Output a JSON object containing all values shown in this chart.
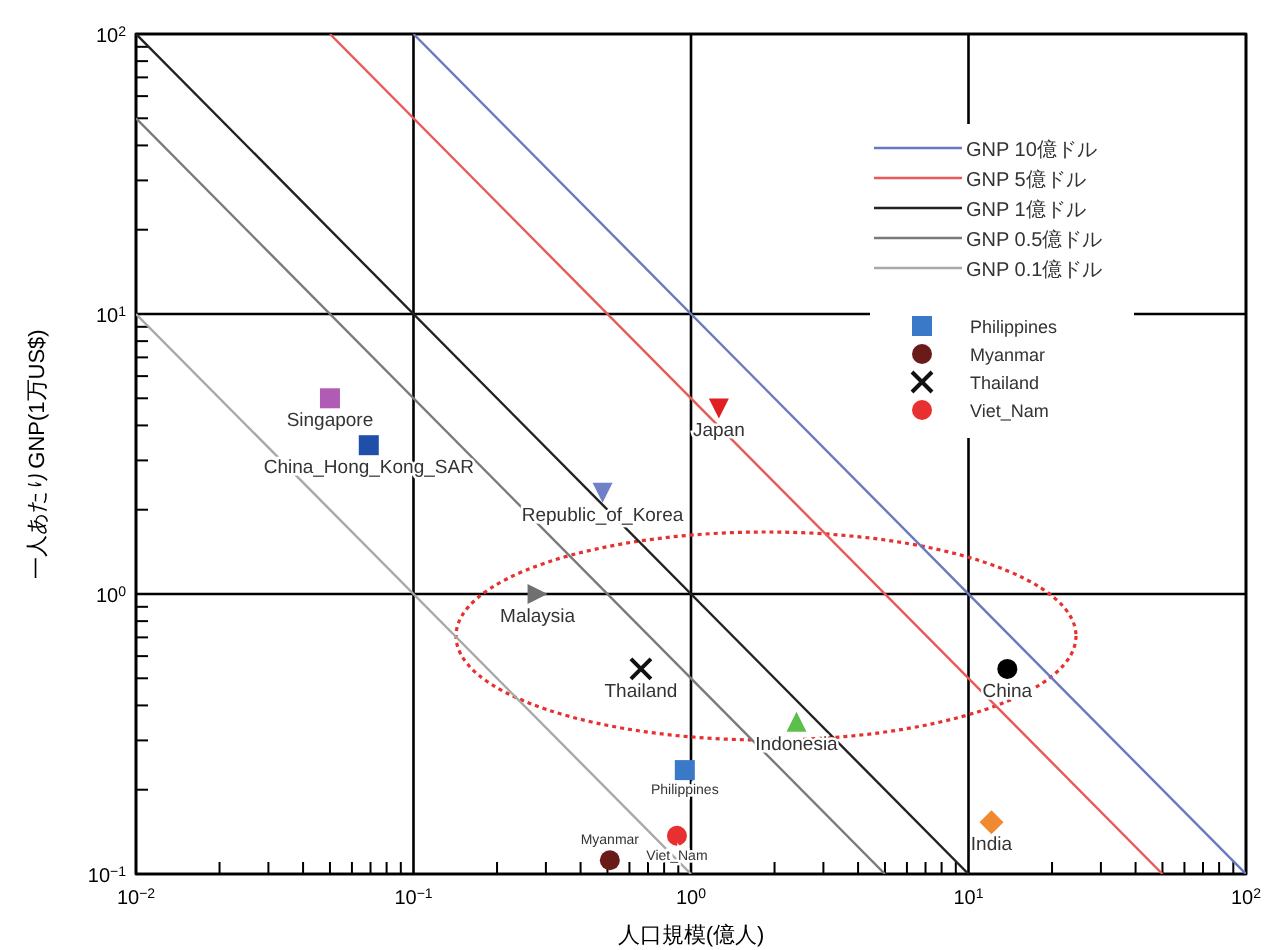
{
  "chart_data": {
    "type": "scatter",
    "xlabel": "人口規模(億人)",
    "ylabel": "一人あたりGNP(1万US$)",
    "log": "xy",
    "grid": true,
    "legend": "top right",
    "xlim": [
      0.01,
      100
    ],
    "ylim": [
      0.1,
      100
    ],
    "xticks": [
      {
        "value": 0.01,
        "label": "10$^{−2}$"
      },
      {
        "value": 0.1,
        "label": "10$^{−1}$"
      },
      {
        "value": 1,
        "label": "10$^{0}$"
      },
      {
        "value": 10,
        "label": "10$^{1}$"
      },
      {
        "value": 100,
        "label": "10$^{2}$"
      }
    ],
    "yticks": [
      {
        "value": 0.1,
        "label": "10$^{−1}$"
      },
      {
        "value": 1,
        "label": "10$^{0}$"
      },
      {
        "value": 10,
        "label": "10$^{1}$"
      },
      {
        "value": 100,
        "label": "10$^{2}$"
      }
    ],
    "series": [
      {
        "type": "line",
        "name": "GNP 10億ドル",
        "color": "#6a78c0",
        "x": [
          0.1,
          100
        ],
        "values": [
          100,
          0.1
        ]
      },
      {
        "type": "line",
        "name": "GNP 5億ドル",
        "color": "#e85a5a",
        "x": [
          0.05,
          50
        ],
        "values": [
          100,
          0.1
        ]
      },
      {
        "type": "line",
        "name": "GNP 1億ドル",
        "color": "#222222",
        "x": [
          0.01,
          10
        ],
        "values": [
          100,
          0.1
        ]
      },
      {
        "type": "line",
        "name": "GNP 0.5億ドル",
        "color": "#7a7a7a",
        "x": [
          0.01,
          5
        ],
        "values": [
          50,
          0.1
        ]
      },
      {
        "type": "line",
        "name": "GNP 0.1億ドル",
        "color": "#a8a8a8",
        "x": [
          0.01,
          1
        ],
        "values": [
          10,
          0.1
        ]
      },
      {
        "name": "Philippines",
        "color": "#3a78c8",
        "marker": "square",
        "x": [
          0.95
        ],
        "values": [
          0.235
        ]
      },
      {
        "name": "Myanmar",
        "color": "#6b1a1a",
        "marker": "circle",
        "x": [
          0.51
        ],
        "values": [
          0.112
        ]
      },
      {
        "name": "Thailand",
        "color": "#111111",
        "marker": "cross",
        "x": [
          0.66
        ],
        "values": [
          0.54
        ]
      },
      {
        "name": "Viet_Nam",
        "color": "#e83030",
        "marker": "circle",
        "x": [
          0.89
        ],
        "values": [
          0.137
        ]
      },
      {
        "name": "Singapore",
        "color": "#b05cb5",
        "marker": "square",
        "x": [
          0.05
        ],
        "values": [
          5.0
        ]
      },
      {
        "name": "China_Hong_Kong_SAR",
        "color": "#1f4fa8",
        "marker": "square",
        "x": [
          0.069
        ],
        "values": [
          3.4
        ]
      },
      {
        "name": "Republic_of_Korea",
        "color": "#7080c8",
        "marker": "triangle-down",
        "x": [
          0.48
        ],
        "values": [
          2.3
        ]
      },
      {
        "name": "Japan",
        "color": "#e02020",
        "marker": "triangle-down",
        "x": [
          1.26
        ],
        "values": [
          4.6
        ]
      },
      {
        "name": "Malaysia",
        "color": "#707070",
        "marker": "triangle-right",
        "x": [
          0.28
        ],
        "values": [
          1.0
        ]
      },
      {
        "name": "China",
        "color": "#000000",
        "marker": "circle",
        "x": [
          13.8
        ],
        "values": [
          0.54
        ]
      },
      {
        "name": "Indonesia",
        "color": "#5cbf4a",
        "marker": "triangle",
        "x": [
          2.4
        ],
        "values": [
          0.35
        ]
      },
      {
        "name": "India",
        "color": "#f08a30",
        "marker": "diamond",
        "x": [
          12.1
        ],
        "values": [
          0.153
        ]
      }
    ]
  }
}
